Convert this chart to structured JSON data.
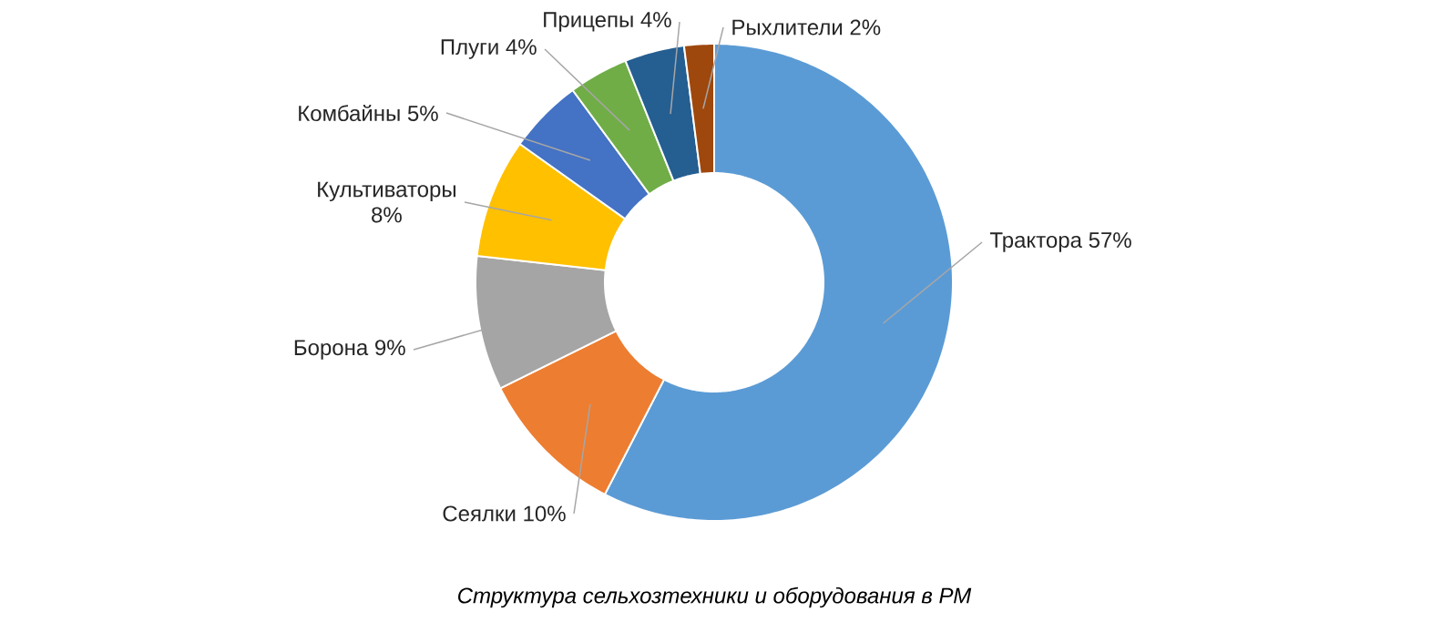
{
  "chart_data": {
    "type": "donut",
    "title": "Структура сельхозтехники и оборудования в РМ",
    "categories": [
      "Трактора",
      "Сеялки",
      "Борона",
      "Культиваторы",
      "Комбайны",
      "Плуги",
      "Прицепы",
      "Рыхлители"
    ],
    "values": [
      57,
      10,
      9,
      8,
      5,
      4,
      4,
      2
    ],
    "value_labels": [
      "57%",
      "10%",
      "9%",
      "8%",
      "5%",
      "4%",
      "4%",
      "2%"
    ],
    "colors": [
      "#5b9bd5",
      "#ed7d31",
      "#a5a5a5",
      "#ffc000",
      "#4472c4",
      "#70ad47",
      "#255e91",
      "#9e480e"
    ]
  }
}
